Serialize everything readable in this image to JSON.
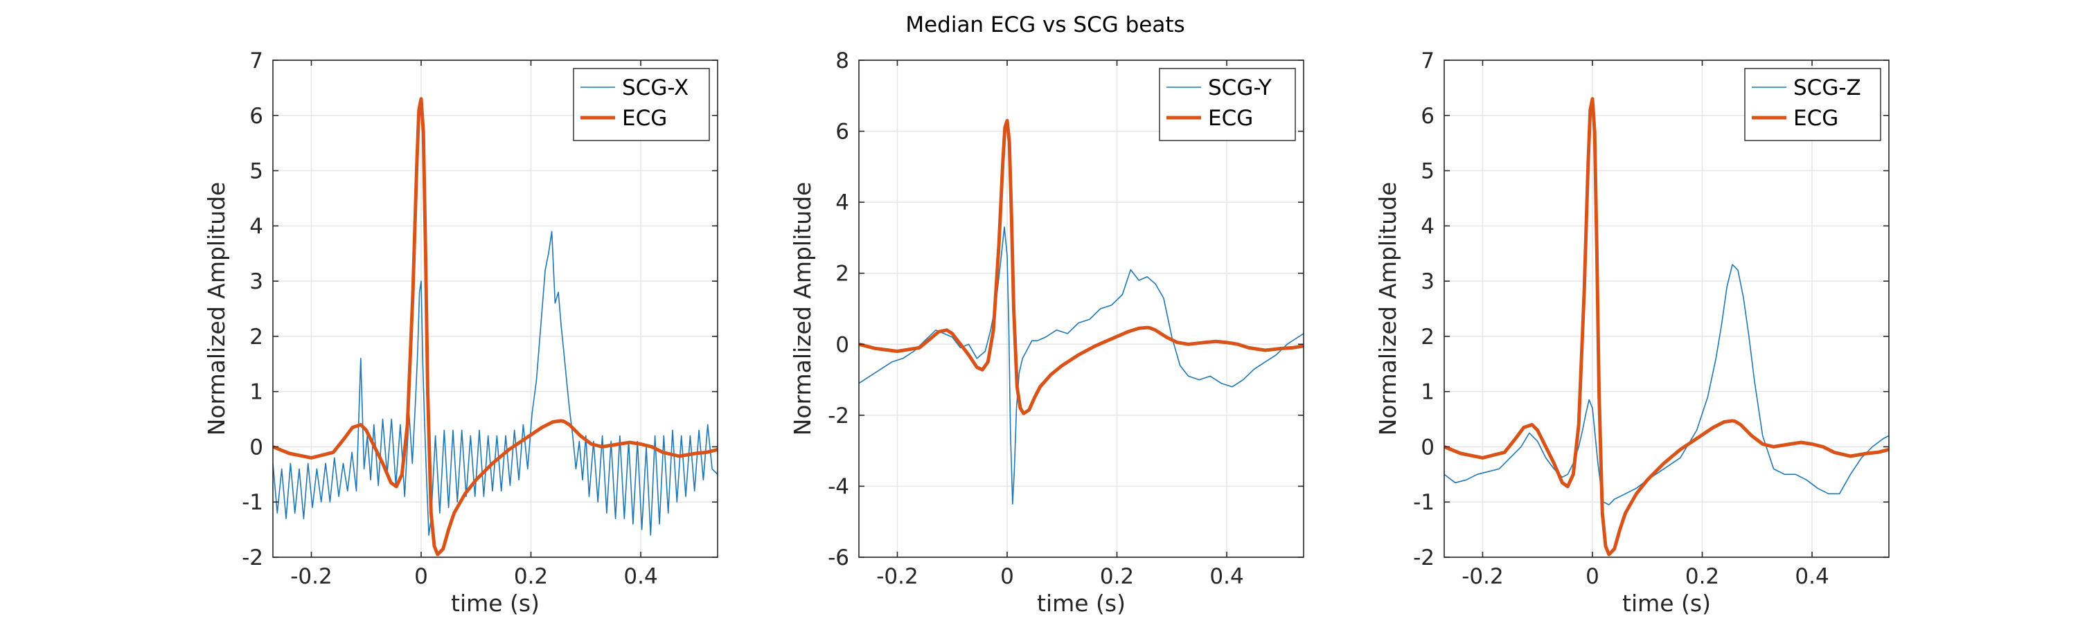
{
  "chart_data": {
    "title": "Median ECG vs SCG beats",
    "colors": {
      "scg": "#1f77b4",
      "ecg": "#d95319",
      "grid": "#e6e6e6",
      "axis": "#262626"
    },
    "grid": true,
    "legend_position": "top-right",
    "panels": [
      {
        "type": "line",
        "xlabel": "time (s)",
        "ylabel": "Normalized Amplitude",
        "xlim": [
          -0.27,
          0.54
        ],
        "ylim": [
          -2,
          7
        ],
        "xticks": [
          -0.2,
          0,
          0.2,
          0.4
        ],
        "xtick_labels": [
          "-0.2",
          "0",
          "0.2",
          "0.4"
        ],
        "yticks": [
          -2,
          -1,
          0,
          1,
          2,
          3,
          4,
          5,
          6,
          7
        ],
        "ytick_labels": [
          "-2",
          "-1",
          "0",
          "1",
          "2",
          "3",
          "4",
          "5",
          "6",
          "7"
        ],
        "series": [
          {
            "name": "SCG-X",
            "style": "thin",
            "x": [
              -0.27,
              -0.262,
              -0.254,
              -0.246,
              -0.238,
              -0.23,
              -0.222,
              -0.214,
              -0.206,
              -0.198,
              -0.19,
              -0.182,
              -0.174,
              -0.166,
              -0.158,
              -0.15,
              -0.142,
              -0.134,
              -0.126,
              -0.118,
              -0.11,
              -0.104,
              -0.098,
              -0.092,
              -0.086,
              -0.078,
              -0.07,
              -0.062,
              -0.054,
              -0.046,
              -0.038,
              -0.03,
              -0.022,
              -0.016,
              -0.01,
              -0.006,
              -0.003,
              0,
              0.003,
              0.006,
              0.01,
              0.014,
              0.018,
              0.026,
              0.034,
              0.042,
              0.05,
              0.058,
              0.066,
              0.074,
              0.082,
              0.09,
              0.098,
              0.106,
              0.114,
              0.122,
              0.13,
              0.138,
              0.146,
              0.154,
              0.162,
              0.17,
              0.178,
              0.186,
              0.194,
              0.202,
              0.21,
              0.218,
              0.226,
              0.232,
              0.238,
              0.244,
              0.25,
              0.255,
              0.26,
              0.265,
              0.27,
              0.276,
              0.282,
              0.288,
              0.294,
              0.3,
              0.306,
              0.314,
              0.322,
              0.33,
              0.338,
              0.346,
              0.354,
              0.362,
              0.37,
              0.378,
              0.386,
              0.394,
              0.402,
              0.41,
              0.418,
              0.426,
              0.434,
              0.442,
              0.45,
              0.458,
              0.466,
              0.474,
              0.482,
              0.49,
              0.498,
              0.506,
              0.514,
              0.522,
              0.53,
              0.54
            ],
            "y": [
              -0.3,
              -1.2,
              -0.4,
              -1.3,
              -0.3,
              -1.2,
              -0.4,
              -1.3,
              -0.3,
              -1.1,
              -0.4,
              -1.0,
              -0.3,
              -1.0,
              -0.2,
              -0.9,
              -0.3,
              -0.8,
              -0.1,
              -0.8,
              1.6,
              -0.4,
              0.2,
              -0.6,
              0.4,
              -0.7,
              0.5,
              -0.5,
              0.5,
              -0.7,
              0.4,
              -0.9,
              0.6,
              -0.3,
              0.9,
              1.8,
              2.8,
              3.0,
              1.5,
              0.5,
              -0.6,
              -1.6,
              -1.3,
              0.2,
              -1.2,
              0.3,
              -1.1,
              0.3,
              -1.0,
              0.3,
              -0.9,
              0.2,
              -0.9,
              0.3,
              -0.9,
              0.2,
              -0.8,
              0.2,
              -0.8,
              0.2,
              -0.7,
              0.3,
              -0.6,
              0.4,
              -0.4,
              0.6,
              1.2,
              2.2,
              3.2,
              3.5,
              3.9,
              2.6,
              2.8,
              2.2,
              1.7,
              1.2,
              0.7,
              0.2,
              -0.4,
              0.1,
              -0.6,
              0.2,
              -0.9,
              0.1,
              -1.0,
              0.2,
              -1.2,
              0.1,
              -1.3,
              0.2,
              -1.3,
              0.1,
              -1.4,
              0.1,
              -1.5,
              0.0,
              -1.6,
              0.2,
              -1.4,
              0.2,
              -1.2,
              0.3,
              -1.0,
              0.2,
              -0.9,
              0.2,
              -0.8,
              0.3,
              -0.6,
              0.4,
              -0.4,
              -0.5
            ]
          },
          {
            "name": "ECG",
            "style": "thick",
            "x": [
              -0.27,
              -0.24,
              -0.2,
              -0.16,
              -0.14,
              -0.125,
              -0.11,
              -0.1,
              -0.085,
              -0.07,
              -0.055,
              -0.045,
              -0.035,
              -0.025,
              -0.015,
              -0.008,
              -0.004,
              0,
              0.004,
              0.008,
              0.012,
              0.018,
              0.024,
              0.03,
              0.04,
              0.05,
              0.06,
              0.08,
              0.1,
              0.13,
              0.16,
              0.19,
              0.22,
              0.24,
              0.255,
              0.26,
              0.27,
              0.29,
              0.31,
              0.33,
              0.36,
              0.38,
              0.4,
              0.42,
              0.44,
              0.47,
              0.5,
              0.52,
              0.54
            ],
            "y": [
              0.0,
              -0.12,
              -0.2,
              -0.1,
              0.15,
              0.35,
              0.4,
              0.3,
              0.0,
              -0.3,
              -0.65,
              -0.72,
              -0.5,
              0.4,
              2.8,
              5.1,
              6.1,
              6.3,
              5.7,
              3.6,
              1.0,
              -1.2,
              -1.8,
              -1.95,
              -1.85,
              -1.5,
              -1.2,
              -0.85,
              -0.6,
              -0.3,
              -0.05,
              0.15,
              0.35,
              0.45,
              0.47,
              0.46,
              0.4,
              0.2,
              0.05,
              0.0,
              0.05,
              0.08,
              0.05,
              0.0,
              -0.1,
              -0.17,
              -0.12,
              -0.1,
              -0.05
            ]
          }
        ]
      },
      {
        "type": "line",
        "xlabel": "time (s)",
        "ylabel": "Normalized Amplitude",
        "xlim": [
          -0.27,
          0.54
        ],
        "ylim": [
          -6,
          8
        ],
        "xticks": [
          -0.2,
          0,
          0.2,
          0.4
        ],
        "xtick_labels": [
          "-0.2",
          "0",
          "0.2",
          "0.4"
        ],
        "yticks": [
          -6,
          -4,
          -2,
          0,
          2,
          4,
          6,
          8
        ],
        "ytick_labels": [
          "-6",
          "-4",
          "-2",
          "0",
          "2",
          "4",
          "6",
          "8"
        ],
        "series": [
          {
            "name": "SCG-Y",
            "style": "thin",
            "x": [
              -0.27,
              -0.25,
              -0.23,
              -0.21,
              -0.19,
              -0.17,
              -0.15,
              -0.13,
              -0.115,
              -0.1,
              -0.085,
              -0.07,
              -0.055,
              -0.04,
              -0.03,
              -0.02,
              -0.012,
              -0.005,
              0,
              0.003,
              0.006,
              0.01,
              0.013,
              0.017,
              0.022,
              0.028,
              0.035,
              0.045,
              0.055,
              0.07,
              0.09,
              0.11,
              0.13,
              0.15,
              0.17,
              0.19,
              0.21,
              0.225,
              0.24,
              0.255,
              0.27,
              0.285,
              0.3,
              0.315,
              0.33,
              0.35,
              0.37,
              0.39,
              0.41,
              0.43,
              0.45,
              0.47,
              0.49,
              0.51,
              0.53,
              0.54
            ],
            "y": [
              -1.1,
              -0.9,
              -0.7,
              -0.5,
              -0.4,
              -0.2,
              0.1,
              0.4,
              0.3,
              0.2,
              -0.1,
              0.0,
              -0.4,
              -0.2,
              0.4,
              1.2,
              2.3,
              3.3,
              2.5,
              0.5,
              -2.5,
              -4.5,
              -3.6,
              -1.8,
              -0.8,
              -0.4,
              -0.2,
              0.1,
              0.1,
              0.2,
              0.4,
              0.3,
              0.6,
              0.7,
              1.0,
              1.1,
              1.4,
              2.1,
              1.8,
              1.9,
              1.7,
              1.3,
              0.2,
              -0.6,
              -0.9,
              -1.0,
              -0.9,
              -1.1,
              -1.2,
              -1.0,
              -0.7,
              -0.5,
              -0.3,
              0.0,
              0.2,
              0.3
            ]
          },
          {
            "name": "ECG",
            "style": "thick",
            "x": [
              -0.27,
              -0.24,
              -0.2,
              -0.16,
              -0.14,
              -0.125,
              -0.11,
              -0.1,
              -0.085,
              -0.07,
              -0.055,
              -0.045,
              -0.035,
              -0.025,
              -0.015,
              -0.008,
              -0.004,
              0,
              0.004,
              0.008,
              0.012,
              0.018,
              0.024,
              0.03,
              0.04,
              0.05,
              0.06,
              0.08,
              0.1,
              0.13,
              0.16,
              0.19,
              0.22,
              0.24,
              0.255,
              0.26,
              0.27,
              0.29,
              0.31,
              0.33,
              0.36,
              0.38,
              0.4,
              0.42,
              0.44,
              0.47,
              0.5,
              0.52,
              0.54
            ],
            "y": [
              0.0,
              -0.12,
              -0.2,
              -0.1,
              0.15,
              0.35,
              0.4,
              0.3,
              0.0,
              -0.3,
              -0.65,
              -0.72,
              -0.5,
              0.4,
              2.8,
              5.1,
              6.1,
              6.3,
              5.7,
              3.6,
              1.0,
              -1.2,
              -1.8,
              -1.95,
              -1.85,
              -1.5,
              -1.2,
              -0.85,
              -0.6,
              -0.3,
              -0.05,
              0.15,
              0.35,
              0.45,
              0.47,
              0.46,
              0.4,
              0.2,
              0.05,
              0.0,
              0.05,
              0.08,
              0.05,
              0.0,
              -0.1,
              -0.17,
              -0.12,
              -0.1,
              -0.05
            ]
          }
        ]
      },
      {
        "type": "line",
        "xlabel": "time (s)",
        "ylabel": "Normalized Amplitude",
        "xlim": [
          -0.27,
          0.54
        ],
        "ylim": [
          -2,
          7
        ],
        "xticks": [
          -0.2,
          0,
          0.2,
          0.4
        ],
        "xtick_labels": [
          "-0.2",
          "0",
          "0.2",
          "0.4"
        ],
        "yticks": [
          -2,
          -1,
          0,
          1,
          2,
          3,
          4,
          5,
          6,
          7
        ],
        "ytick_labels": [
          "-2",
          "-1",
          "0",
          "1",
          "2",
          "3",
          "4",
          "5",
          "6",
          "7"
        ],
        "series": [
          {
            "name": "SCG-Z",
            "style": "thin",
            "x": [
              -0.27,
              -0.25,
              -0.23,
              -0.21,
              -0.19,
              -0.17,
              -0.15,
              -0.13,
              -0.115,
              -0.1,
              -0.085,
              -0.07,
              -0.055,
              -0.045,
              -0.035,
              -0.025,
              -0.018,
              -0.012,
              -0.006,
              0,
              0.005,
              0.01,
              0.015,
              0.02,
              0.03,
              0.04,
              0.06,
              0.08,
              0.1,
              0.13,
              0.16,
              0.19,
              0.21,
              0.225,
              0.235,
              0.245,
              0.255,
              0.265,
              0.275,
              0.285,
              0.295,
              0.31,
              0.33,
              0.35,
              0.37,
              0.39,
              0.41,
              0.43,
              0.45,
              0.47,
              0.49,
              0.51,
              0.53,
              0.54
            ],
            "y": [
              -0.5,
              -0.65,
              -0.6,
              -0.5,
              -0.45,
              -0.4,
              -0.2,
              0.0,
              0.25,
              0.1,
              -0.2,
              -0.4,
              -0.55,
              -0.5,
              -0.3,
              0.0,
              0.3,
              0.6,
              0.85,
              0.7,
              0.2,
              -0.3,
              -0.7,
              -1.0,
              -1.05,
              -0.95,
              -0.85,
              -0.75,
              -0.6,
              -0.4,
              -0.2,
              0.3,
              0.9,
              1.6,
              2.2,
              2.9,
              3.3,
              3.2,
              2.7,
              2.0,
              1.2,
              0.2,
              -0.4,
              -0.5,
              -0.5,
              -0.6,
              -0.75,
              -0.85,
              -0.85,
              -0.5,
              -0.2,
              0.0,
              0.15,
              0.2
            ]
          },
          {
            "name": "ECG",
            "style": "thick",
            "x": [
              -0.27,
              -0.24,
              -0.2,
              -0.16,
              -0.14,
              -0.125,
              -0.11,
              -0.1,
              -0.085,
              -0.07,
              -0.055,
              -0.045,
              -0.035,
              -0.025,
              -0.015,
              -0.008,
              -0.004,
              0,
              0.004,
              0.008,
              0.012,
              0.018,
              0.024,
              0.03,
              0.04,
              0.05,
              0.06,
              0.08,
              0.1,
              0.13,
              0.16,
              0.19,
              0.22,
              0.24,
              0.255,
              0.26,
              0.27,
              0.29,
              0.31,
              0.33,
              0.36,
              0.38,
              0.4,
              0.42,
              0.44,
              0.47,
              0.5,
              0.52,
              0.54
            ],
            "y": [
              0.0,
              -0.12,
              -0.2,
              -0.1,
              0.15,
              0.35,
              0.4,
              0.3,
              0.0,
              -0.3,
              -0.65,
              -0.72,
              -0.5,
              0.4,
              2.8,
              5.1,
              6.1,
              6.3,
              5.7,
              3.6,
              1.0,
              -1.2,
              -1.8,
              -1.95,
              -1.85,
              -1.5,
              -1.2,
              -0.85,
              -0.6,
              -0.3,
              -0.05,
              0.15,
              0.35,
              0.45,
              0.47,
              0.46,
              0.4,
              0.2,
              0.05,
              0.0,
              0.05,
              0.08,
              0.05,
              0.0,
              -0.1,
              -0.17,
              -0.12,
              -0.1,
              -0.05
            ]
          }
        ]
      }
    ]
  }
}
